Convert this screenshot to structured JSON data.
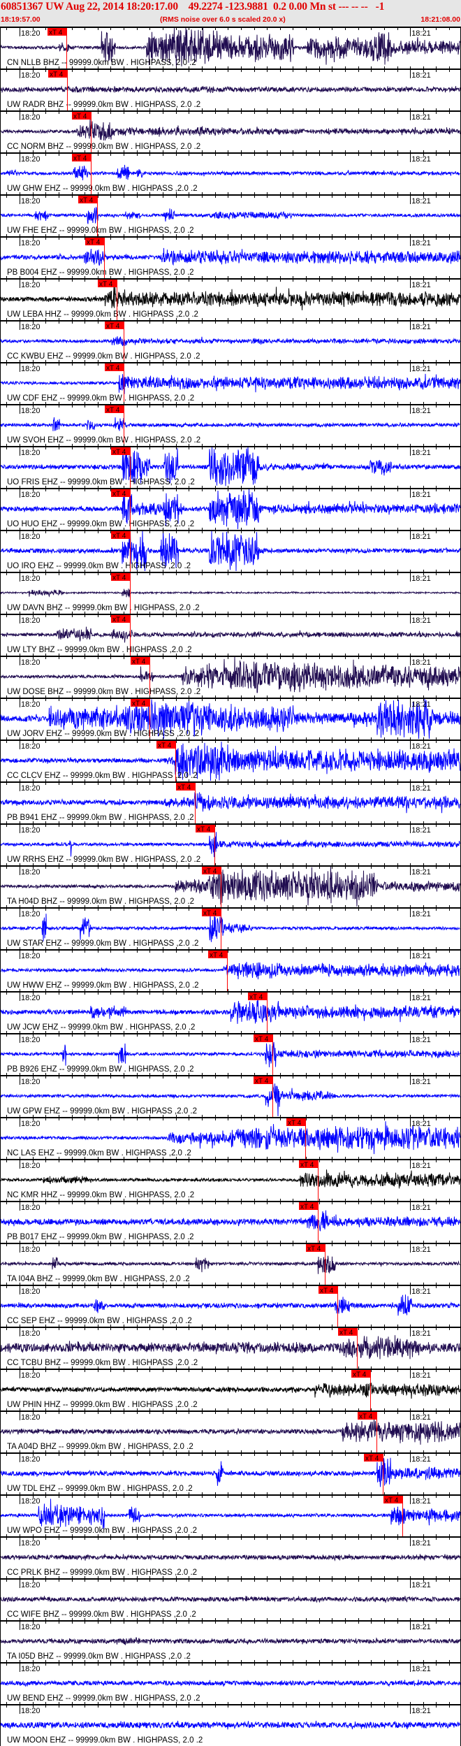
{
  "header": {
    "title": "60851367 UW Aug 22, 2014 18:20:17.00    49.2274 -123.9881  0.2 0.00 Mn st --- -- --   -1",
    "start_time": "18:19:57.00",
    "note": "(RMS noise over 6.0 s scaled 20.0 x)",
    "end_time": "18:21:08.00"
  },
  "chart_data": {
    "type": "line",
    "title": "60851367 UW Aug 22, 2014 18:20:17.00    49.2274 -123.9881  0.2 0.00 Mn st --- -- --   -1",
    "x_range": [
      "18:19:57.00",
      "18:21:08.00"
    ],
    "tick_labels": [
      "18:20",
      "18:21"
    ],
    "minor_tick_interval_s": 2,
    "pick_label": "xT 4",
    "colors": {
      "BHZ": "#200c50",
      "EHZ": "#0000ff",
      "HHZ": "#000000",
      "pick": "#ff0000"
    },
    "traces": [
      {
        "label": "CN NLLB BHZ -- 99999.0km BW . HIGHPASS, 2.0 .2",
        "color": "#200c50",
        "pick_s_after_1820": 7.2
      },
      {
        "label": "UW RADR BHZ -- 99999.0km BW . HIGHPASS, 2.0 .2",
        "color": "#200c50",
        "pick_s_after_1820": 7.3
      },
      {
        "label": "CC NORM BHZ -- 99999.0km BW . HIGHPASS, 2.0 .2",
        "color": "#200c50",
        "pick_s_after_1820": 10.9
      },
      {
        "label": "UW GHW EHZ -- 99999.0km BW . HIGHPASS ,2.0 .2",
        "color": "#0000ff",
        "pick_s_after_1820": 10.9
      },
      {
        "label": "UW FHE EHZ -- 99999.0km BW . HIGHPASS, 2.0 .2",
        "color": "#0000ff",
        "pick_s_after_1820": 11.9
      },
      {
        "label": "PB B004 EHZ -- 99999.0km BW . HIGHPASS, 2.0 .2",
        "color": "#0000ff",
        "pick_s_after_1820": 13.0
      },
      {
        "label": "UW LEBA HHZ -- 99999.0km BW . HIGHPASS ,2.0 .2",
        "color": "#000000",
        "pick_s_after_1820": 14.9
      },
      {
        "label": "CC KWBU EHZ -- 99999.0km BW . HIGHPASS, 2.0 .2",
        "color": "#0000ff",
        "pick_s_after_1820": 16.0
      },
      {
        "label": "UW CDF EHZ -- 99999.0km BW . HIGHPASS, 2.0 .2",
        "color": "#0000ff",
        "pick_s_after_1820": 16.0
      },
      {
        "label": "UW SVOH EHZ -- 99999.0km BW . HIGHPASS, 2.0 .2",
        "color": "#0000ff",
        "pick_s_after_1820": 16.0
      },
      {
        "label": "UO FRIS EHZ -- 99999.0km BW . HIGHPASS, 2.0 .2",
        "color": "#0000ff",
        "pick_s_after_1820": 17.0
      },
      {
        "label": "UO HUO EHZ -- 99999.0km BW . HIGHPASS, 2.0 .2",
        "color": "#0000ff",
        "pick_s_after_1820": 17.0
      },
      {
        "label": "UO IRO EHZ -- 99999.0km BW . HIGHPASS ,2.0 .2",
        "color": "#0000ff",
        "pick_s_after_1820": 17.0
      },
      {
        "label": "UW DAVN BHZ -- 99999.0km BW . HIGHPASS, 2.0 .2",
        "color": "#200c50",
        "pick_s_after_1820": 17.0
      },
      {
        "label": "UW LTY BHZ -- 99999.0km BW . HIGHPASS ,2.0 .2",
        "color": "#200c50",
        "pick_s_after_1820": 17.0
      },
      {
        "label": "UW DOSE BHZ -- 99999.0km BW . HIGHPASS, 2.0 .2",
        "color": "#200c50",
        "pick_s_after_1820": 20.0
      },
      {
        "label": "UW JORV EHZ -- 99999.0km BW . HIGHPASS ,2.0 .2",
        "color": "#0000ff",
        "pick_s_after_1820": 20.0
      },
      {
        "label": "CC CLCV EHZ -- 99999.0km BW . HIGHPASS ,2.0 .2",
        "color": "#0000ff",
        "pick_s_after_1820": 23.9
      },
      {
        "label": "PB B941 EHZ -- 99999.0km BW . HIGHPASS, 2.0 .2",
        "color": "#0000ff",
        "pick_s_after_1820": 26.9
      },
      {
        "label": "UW RRHS EHZ -- 99999.0km BW . HIGHPASS, 2.0 .2",
        "color": "#0000ff",
        "pick_s_after_1820": 29.9
      },
      {
        "label": "TA H04D BHZ -- 99999.0km BW . HIGHPASS, 2.0 .2",
        "color": "#200c50",
        "pick_s_after_1820": 30.9
      },
      {
        "label": "UW STAR EHZ -- 99999.0km BW . HIGHPASS ,2.0 .2",
        "color": "#0000ff",
        "pick_s_after_1820": 30.9
      },
      {
        "label": "UW HWW EHZ -- 99999.0km BW . HIGHPASS, 2.0 .2",
        "color": "#0000ff",
        "pick_s_after_1820": 31.9
      },
      {
        "label": "UW JCW EHZ -- 99999.0km BW . HIGHPASS, 2.0 .2",
        "color": "#0000ff",
        "pick_s_after_1820": 38.0
      },
      {
        "label": "PB B926 EHZ -- 99999.0km BW . HIGHPASS, 2.0 .2",
        "color": "#0000ff",
        "pick_s_after_1820": 38.8
      },
      {
        "label": "UW GPW EHZ -- 99999.0km BW . HIGHPASS ,2.0 .2",
        "color": "#0000ff",
        "pick_s_after_1820": 38.8
      },
      {
        "label": "NC LAS EHZ -- 99999.0km BW . HIGHPASS ,2.0 .2",
        "color": "#0000ff",
        "pick_s_after_1820": 43.9
      },
      {
        "label": "NC KMR HHZ -- 99999.0km BW . HIGHPASS, 2.0 .2",
        "color": "#000000",
        "pick_s_after_1820": 45.8
      },
      {
        "label": "PB B017 EHZ -- 99999.0km BW . HIGHPASS, 2.0 .2",
        "color": "#0000ff",
        "pick_s_after_1820": 45.8
      },
      {
        "label": "TA I04A BHZ -- 99999.0km BW . HIGHPASS, 2.0 .2",
        "color": "#200c50",
        "pick_s_after_1820": 46.9
      },
      {
        "label": "CC SEP EHZ -- 99999.0km BW . HIGHPASS ,2.0 .2",
        "color": "#0000ff",
        "pick_s_after_1820": 48.8
      },
      {
        "label": "CC TCBU BHZ -- 99999.0km BW . HIGHPASS ,2.0 .2",
        "color": "#200c50",
        "pick_s_after_1820": 51.8
      },
      {
        "label": "UW PHIN HHZ -- 99999.0km BW . HIGHPASS ,2.0 .2",
        "color": "#000000",
        "pick_s_after_1820": 53.9
      },
      {
        "label": "TA A04D BHZ -- 99999.0km BW . HIGHPASS, 2.0 .2",
        "color": "#200c50",
        "pick_s_after_1820": 54.8
      },
      {
        "label": "UW TDL EHZ -- 99999.0km BW . HIGHPASS, 2.0 .2",
        "color": "#0000ff",
        "pick_s_after_1820": 55.8
      },
      {
        "label": "UW WPO EHZ -- 99999.0km BW . HIGHPASS ,2.0 .2",
        "color": "#0000ff",
        "pick_s_after_1820": 58.8
      },
      {
        "label": "CC PRLK BHZ -- 99999.0km BW . HIGHPASS ,2.0 .2",
        "color": "#200c50"
      },
      {
        "label": "CC WIFE BHZ -- 99999.0km BW . HIGHPASS ,2.0 .2",
        "color": "#200c50"
      },
      {
        "label": "TA I05D BHZ -- 99999.0km BW . HIGHPASS ,2.0 .2",
        "color": "#200c50"
      },
      {
        "label": "UW BEND EHZ -- 99999.0km BW . HIGHPASS, 2.0 .2",
        "color": "#0000ff"
      },
      {
        "label": "UW MOON EHZ -- 99999.0km BW . HIGHPASS, 2.0 .2",
        "color": "#0000ff"
      }
    ]
  }
}
